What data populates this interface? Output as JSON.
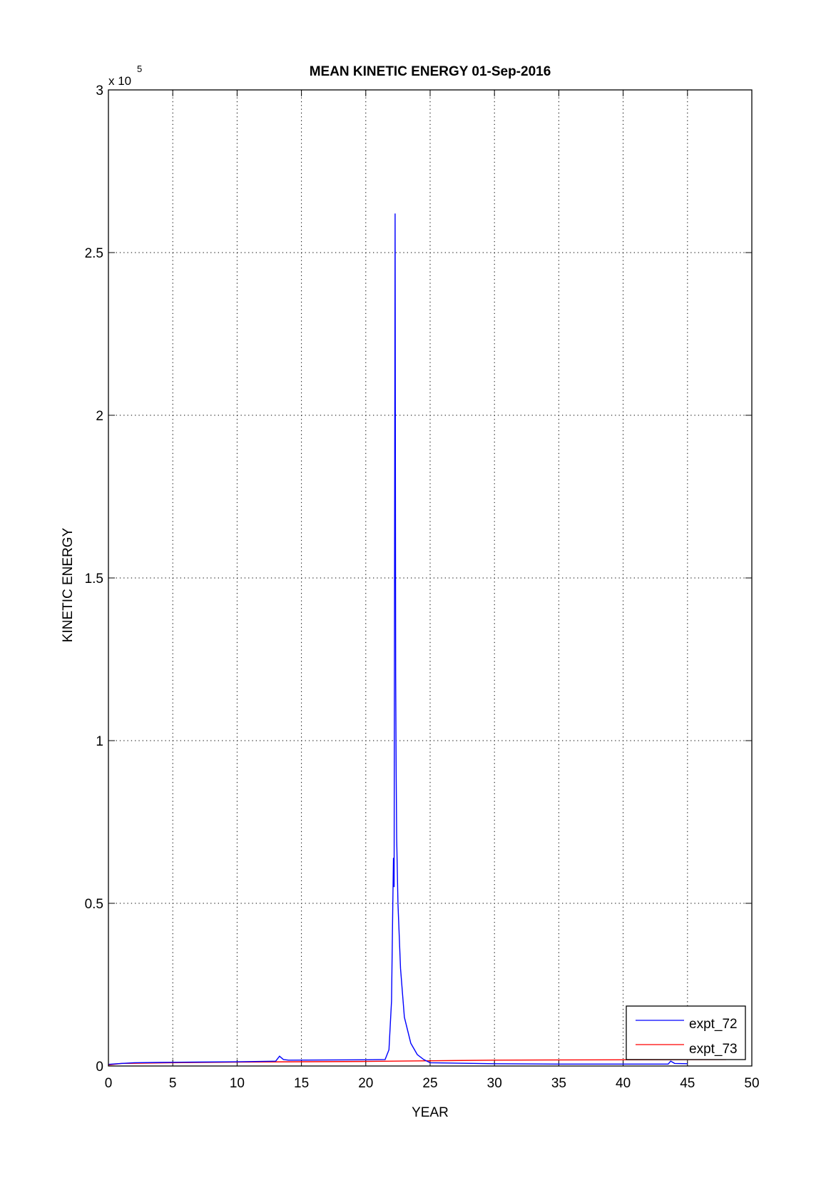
{
  "chart_data": {
    "type": "line",
    "title": "MEAN KINETIC ENERGY 01-Sep-2016",
    "xlabel": "YEAR",
    "ylabel": "KINETIC ENERGY",
    "y_exponent_label": "x 10",
    "y_exponent": "5",
    "xlim": [
      0,
      50
    ],
    "ylim": [
      0,
      300000
    ],
    "xticks": [
      0,
      5,
      10,
      15,
      20,
      25,
      30,
      35,
      40,
      45,
      50
    ],
    "xtick_labels": [
      "0",
      "5",
      "10",
      "15",
      "20",
      "25",
      "30",
      "35",
      "40",
      "45",
      "50"
    ],
    "yticks": [
      0,
      50000,
      100000,
      150000,
      200000,
      250000,
      300000
    ],
    "ytick_labels": [
      "0",
      "0.5",
      "1",
      "1.5",
      "2",
      "2.5",
      "3"
    ],
    "grid": true,
    "legend_position": "bottom-right",
    "series": [
      {
        "name": "expt_72",
        "color": "#0000ff",
        "x": [
          0,
          1,
          2,
          4,
          7,
          10,
          13,
          13.3,
          13.6,
          14,
          20,
          21.5,
          21.8,
          22.0,
          22.1,
          22.15,
          22.2,
          22.28,
          22.32,
          22.36,
          22.4,
          22.5,
          22.7,
          23,
          23.5,
          24,
          24.5,
          25,
          30,
          35,
          40,
          43.5,
          43.7,
          44,
          45
        ],
        "y": [
          500,
          800,
          1000,
          1100,
          1200,
          1300,
          1500,
          3000,
          2000,
          1800,
          1900,
          2000,
          5000,
          20000,
          50000,
          64000,
          55000,
          262000,
          120000,
          90000,
          70000,
          50000,
          30000,
          15000,
          7000,
          3500,
          2000,
          1000,
          700,
          600,
          600,
          600,
          1500,
          800,
          700
        ]
      },
      {
        "name": "expt_73",
        "color": "#ff0000",
        "x": [
          0,
          1,
          5,
          10,
          20,
          25,
          30,
          40,
          48
        ],
        "y": [
          300,
          800,
          1000,
          1200,
          1400,
          1600,
          1800,
          1900,
          2000
        ]
      }
    ]
  }
}
